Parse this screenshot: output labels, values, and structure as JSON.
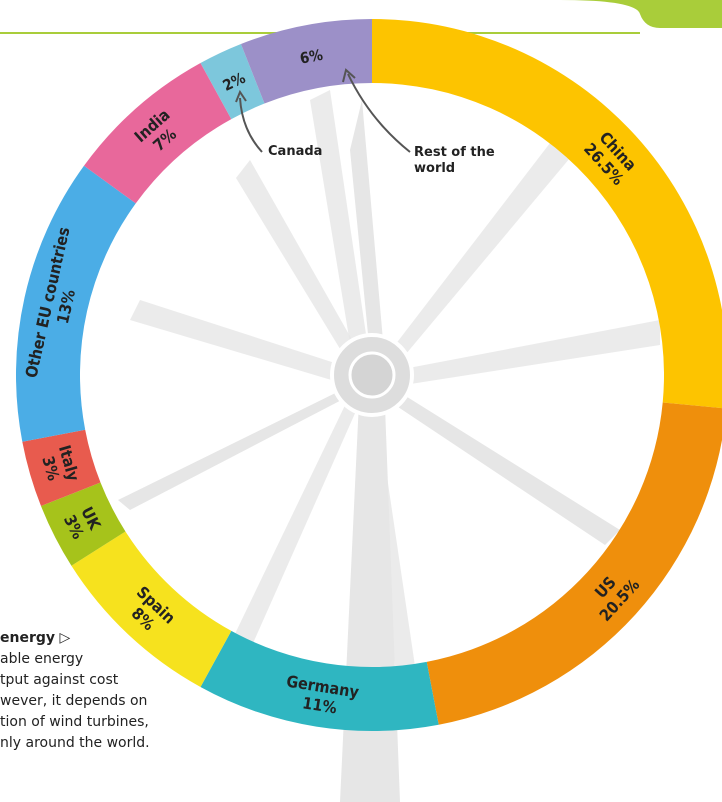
{
  "chart_data": {
    "type": "donut",
    "categories": [
      "China",
      "US",
      "Germany",
      "Spain",
      "UK",
      "Italy",
      "Other EU countries",
      "India",
      "Canada",
      "Rest of the world"
    ],
    "values": [
      26.5,
      20.5,
      11,
      8,
      3,
      3,
      13,
      7,
      2,
      6
    ],
    "value_labels": [
      "26.5%",
      "20.5%",
      "11%",
      "8%",
      "3%",
      "3%",
      "13%",
      "7%",
      "2%",
      "6%"
    ],
    "colors": [
      "#fdc400",
      "#ef8f0c",
      "#2fb6c1",
      "#f6e21e",
      "#a6c31b",
      "#e85b4e",
      "#4bade6",
      "#e8689b",
      "#7dc7dc",
      "#9c90c8"
    ]
  },
  "caption": {
    "title": "energy",
    "lines": [
      "able energy",
      "tput against cost",
      "wever, it depends on",
      "tion of wind turbines,",
      "nly around the world."
    ]
  }
}
